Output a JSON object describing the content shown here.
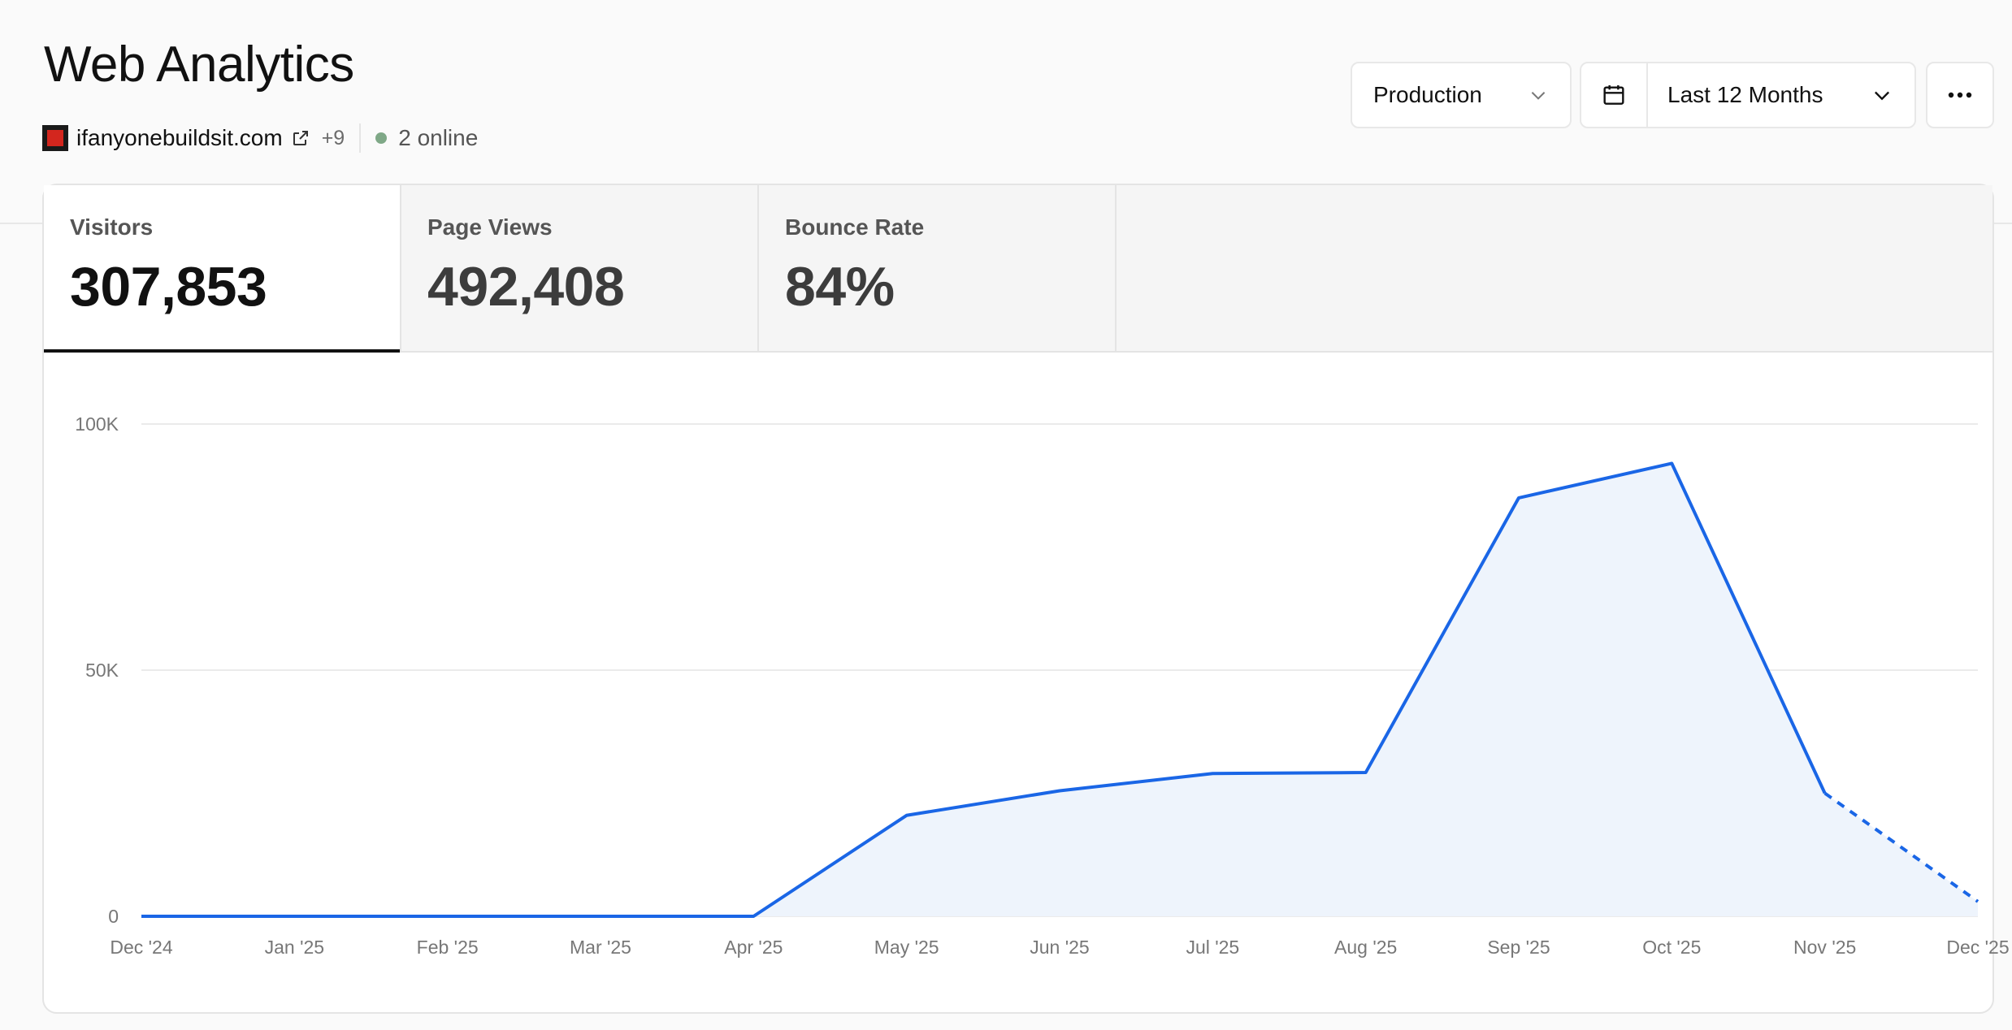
{
  "header": {
    "title": "Web Analytics",
    "site": "ifanyonebuildsit.com",
    "more_domains": "+9",
    "online": "2 online"
  },
  "controls": {
    "environment": "Production",
    "date_range": "Last 12 Months",
    "icons": [
      "chevron-down-icon",
      "calendar-icon",
      "more-horizontal-icon"
    ]
  },
  "colors": {
    "accent": "#1a66e6",
    "area_fill": "#eef4fc",
    "favicon": "#d3261e",
    "online_dot": "#7fa887"
  },
  "metrics": [
    {
      "label": "Visitors",
      "value": "307,853",
      "active": true
    },
    {
      "label": "Page Views",
      "value": "492,408",
      "active": false
    },
    {
      "label": "Bounce Rate",
      "value": "84%",
      "active": false
    }
  ],
  "chart_data": {
    "type": "area",
    "categories": [
      "Dec '24",
      "Jan '25",
      "Feb '25",
      "Mar '25",
      "Apr '25",
      "May '25",
      "Jun '25",
      "Jul '25",
      "Aug '25",
      "Sep '25",
      "Oct '25",
      "Nov '25",
      "Dec '25"
    ],
    "series": [
      {
        "values": [
          0,
          0,
          0,
          0,
          0,
          20500,
          25500,
          29000,
          29200,
          85000,
          92000,
          25000,
          3000
        ]
      }
    ],
    "projected_from_index": 11,
    "ylim": [
      0,
      100000
    ],
    "yticks": [
      {
        "value": 0,
        "label": "0"
      },
      {
        "value": 50000,
        "label": "50K"
      },
      {
        "value": 100000,
        "label": "100K"
      }
    ],
    "grid": true,
    "legend": "none"
  }
}
